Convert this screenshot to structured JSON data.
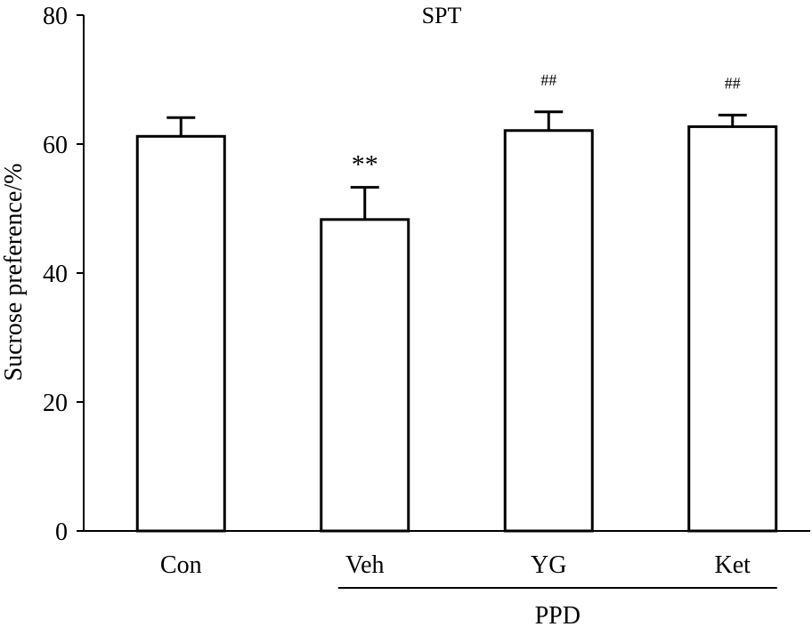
{
  "chart_data": {
    "type": "bar",
    "title": "SPT",
    "ylabel": "Sucrose preference/%",
    "xlabel": "",
    "ylim": [
      0,
      80
    ],
    "yticks": [
      0,
      20,
      40,
      60,
      80
    ],
    "categories": [
      "Con",
      "Veh",
      "YG",
      "Ket"
    ],
    "values": [
      61.2,
      48.3,
      62.1,
      62.7
    ],
    "errors": [
      2.9,
      5.0,
      2.9,
      1.8
    ],
    "significance": [
      "",
      "**",
      "##",
      "##"
    ],
    "group_label": {
      "text": "PPD",
      "categories": [
        "Veh",
        "YG",
        "Ket"
      ]
    },
    "grid": false,
    "bar_fill": "#ffffff",
    "bar_edge": "#000000"
  }
}
